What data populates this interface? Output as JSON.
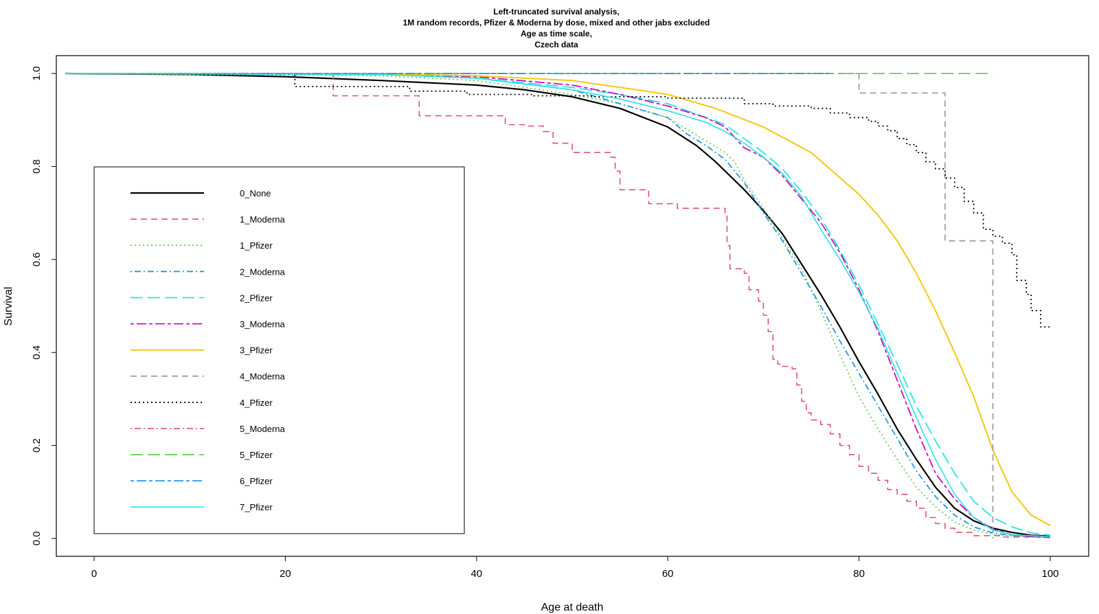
{
  "chart_data": {
    "type": "line",
    "title_lines": [
      "Left-truncated survival analysis,",
      "1M random records, Pfizer & Moderna by dose, mixed and other jabs excluded",
      "Age as time scale,",
      "Czech data"
    ],
    "xlabel": "Age at death",
    "ylabel": "Survival",
    "xlim": [
      -4,
      104
    ],
    "ylim": [
      -0.04,
      1.04
    ],
    "xticks": [
      0,
      20,
      40,
      60,
      80,
      100
    ],
    "yticks": [
      0.0,
      0.2,
      0.4,
      0.6,
      0.8,
      1.0
    ],
    "xtick_labels": [
      "0",
      "20",
      "40",
      "60",
      "80",
      "100"
    ],
    "ytick_labels": [
      "0.0",
      "0.2",
      "0.4",
      "0.6",
      "0.8",
      "1.0"
    ],
    "legend_position": "left",
    "series": [
      {
        "name": "0_None",
        "color": "#000000",
        "dash": "solid",
        "width": 2.2,
        "step": false,
        "points": [
          [
            -3,
            1.0
          ],
          [
            10,
            0.998
          ],
          [
            20,
            0.993
          ],
          [
            30,
            0.985
          ],
          [
            40,
            0.975
          ],
          [
            45,
            0.965
          ],
          [
            50,
            0.95
          ],
          [
            55,
            0.925
          ],
          [
            60,
            0.885
          ],
          [
            63,
            0.845
          ],
          [
            65,
            0.81
          ],
          [
            68,
            0.75
          ],
          [
            70,
            0.705
          ],
          [
            72,
            0.655
          ],
          [
            74,
            0.59
          ],
          [
            76,
            0.525
          ],
          [
            78,
            0.455
          ],
          [
            80,
            0.38
          ],
          [
            82,
            0.31
          ],
          [
            84,
            0.235
          ],
          [
            86,
            0.17
          ],
          [
            88,
            0.11
          ],
          [
            90,
            0.065
          ],
          [
            92,
            0.038
          ],
          [
            94,
            0.022
          ],
          [
            96,
            0.013
          ],
          [
            98,
            0.007
          ],
          [
            100,
            0.005
          ]
        ]
      },
      {
        "name": "1_Moderna",
        "color": "#df536b",
        "dash": "dashed",
        "width": 1.6,
        "step": true,
        "points": [
          [
            -3,
            1.0
          ],
          [
            25,
            0.952
          ],
          [
            34,
            0.909
          ],
          [
            43,
            0.89
          ],
          [
            45,
            0.887
          ],
          [
            47,
            0.875
          ],
          [
            48,
            0.85
          ],
          [
            50,
            0.83
          ],
          [
            54,
            0.82
          ],
          [
            54.5,
            0.79
          ],
          [
            55,
            0.75
          ],
          [
            58,
            0.72
          ],
          [
            61,
            0.71
          ],
          [
            66,
            0.7
          ],
          [
            66.2,
            0.63
          ],
          [
            66.5,
            0.58
          ],
          [
            68,
            0.57
          ],
          [
            68.5,
            0.535
          ],
          [
            69.5,
            0.51
          ],
          [
            70,
            0.48
          ],
          [
            70.5,
            0.445
          ],
          [
            71,
            0.385
          ],
          [
            71.5,
            0.375
          ],
          [
            72,
            0.37
          ],
          [
            73,
            0.365
          ],
          [
            73.5,
            0.33
          ],
          [
            74,
            0.295
          ],
          [
            74.5,
            0.27
          ],
          [
            75,
            0.255
          ],
          [
            76,
            0.245
          ],
          [
            77,
            0.225
          ],
          [
            78,
            0.2
          ],
          [
            79,
            0.18
          ],
          [
            80,
            0.155
          ],
          [
            81,
            0.14
          ],
          [
            82,
            0.125
          ],
          [
            83,
            0.105
          ],
          [
            84,
            0.095
          ],
          [
            85,
            0.08
          ],
          [
            86,
            0.065
          ],
          [
            87,
            0.045
          ],
          [
            88,
            0.032
          ],
          [
            89,
            0.022
          ],
          [
            90,
            0.013
          ],
          [
            92,
            0.006
          ],
          [
            95,
            0.003
          ],
          [
            100,
            0.003
          ]
        ]
      },
      {
        "name": "1_Pfizer",
        "color": "#61d04f",
        "dash": "dotted",
        "width": 1.8,
        "step": false,
        "points": [
          [
            -3,
            1.0
          ],
          [
            30,
            0.995
          ],
          [
            40,
            0.985
          ],
          [
            50,
            0.955
          ],
          [
            55,
            0.935
          ],
          [
            60,
            0.905
          ],
          [
            62,
            0.88
          ],
          [
            64,
            0.855
          ],
          [
            66,
            0.83
          ],
          [
            67,
            0.81
          ],
          [
            68,
            0.77
          ],
          [
            70,
            0.71
          ],
          [
            72,
            0.645
          ],
          [
            74,
            0.58
          ],
          [
            76,
            0.49
          ],
          [
            78,
            0.395
          ],
          [
            80,
            0.305
          ],
          [
            82,
            0.235
          ],
          [
            84,
            0.17
          ],
          [
            86,
            0.11
          ],
          [
            88,
            0.068
          ],
          [
            90,
            0.035
          ],
          [
            92,
            0.018
          ],
          [
            94,
            0.009
          ],
          [
            96,
            0.005
          ],
          [
            100,
            0.003
          ]
        ]
      },
      {
        "name": "2_Moderna",
        "color": "#2297e6",
        "dash": "dashdot",
        "width": 1.8,
        "step": false,
        "points": [
          [
            -3,
            1.0
          ],
          [
            30,
            0.998
          ],
          [
            40,
            0.99
          ],
          [
            50,
            0.965
          ],
          [
            55,
            0.935
          ],
          [
            60,
            0.905
          ],
          [
            62,
            0.87
          ],
          [
            64,
            0.845
          ],
          [
            66,
            0.815
          ],
          [
            68,
            0.765
          ],
          [
            70,
            0.7
          ],
          [
            72,
            0.64
          ],
          [
            74,
            0.57
          ],
          [
            76,
            0.5
          ],
          [
            78,
            0.425
          ],
          [
            80,
            0.355
          ],
          [
            82,
            0.285
          ],
          [
            84,
            0.215
          ],
          [
            86,
            0.145
          ],
          [
            88,
            0.09
          ],
          [
            90,
            0.05
          ],
          [
            92,
            0.025
          ],
          [
            94,
            0.012
          ],
          [
            96,
            0.006
          ],
          [
            100,
            0.003
          ]
        ]
      },
      {
        "name": "2_Pfizer",
        "color": "#28e2e5",
        "dash": "longdash",
        "width": 1.8,
        "step": false,
        "points": [
          [
            -3,
            1.0
          ],
          [
            30,
            0.998
          ],
          [
            40,
            0.99
          ],
          [
            50,
            0.97
          ],
          [
            55,
            0.955
          ],
          [
            60,
            0.935
          ],
          [
            64,
            0.905
          ],
          [
            66,
            0.89
          ],
          [
            68,
            0.86
          ],
          [
            70,
            0.83
          ],
          [
            72,
            0.795
          ],
          [
            74,
            0.745
          ],
          [
            76,
            0.69
          ],
          [
            78,
            0.62
          ],
          [
            80,
            0.545
          ],
          [
            82,
            0.46
          ],
          [
            84,
            0.375
          ],
          [
            86,
            0.285
          ],
          [
            88,
            0.21
          ],
          [
            90,
            0.14
          ],
          [
            92,
            0.08
          ],
          [
            94,
            0.045
          ],
          [
            96,
            0.025
          ],
          [
            98,
            0.012
          ],
          [
            100,
            0.007
          ]
        ]
      },
      {
        "name": "3_Moderna",
        "color": "#cd0bbc",
        "dash": "twodash",
        "width": 1.8,
        "step": false,
        "points": [
          [
            -3,
            1.0
          ],
          [
            30,
            0.998
          ],
          [
            40,
            0.993
          ],
          [
            50,
            0.975
          ],
          [
            55,
            0.955
          ],
          [
            60,
            0.93
          ],
          [
            64,
            0.905
          ],
          [
            66,
            0.885
          ],
          [
            68,
            0.84
          ],
          [
            70,
            0.82
          ],
          [
            72,
            0.78
          ],
          [
            74,
            0.73
          ],
          [
            76,
            0.68
          ],
          [
            78,
            0.615
          ],
          [
            80,
            0.535
          ],
          [
            82,
            0.445
          ],
          [
            84,
            0.34
          ],
          [
            86,
            0.235
          ],
          [
            88,
            0.14
          ],
          [
            90,
            0.085
          ],
          [
            92,
            0.045
          ],
          [
            94,
            0.02
          ],
          [
            96,
            0.008
          ],
          [
            98,
            0.004
          ],
          [
            100,
            0.002
          ]
        ]
      },
      {
        "name": "3_Pfizer",
        "color": "#f5c710",
        "dash": "solid",
        "width": 2.0,
        "step": false,
        "points": [
          [
            -3,
            1.0
          ],
          [
            30,
            0.999
          ],
          [
            40,
            0.995
          ],
          [
            50,
            0.985
          ],
          [
            55,
            0.97
          ],
          [
            60,
            0.955
          ],
          [
            65,
            0.925
          ],
          [
            70,
            0.885
          ],
          [
            75,
            0.83
          ],
          [
            80,
            0.74
          ],
          [
            82,
            0.695
          ],
          [
            84,
            0.64
          ],
          [
            86,
            0.57
          ],
          [
            88,
            0.49
          ],
          [
            90,
            0.4
          ],
          [
            92,
            0.305
          ],
          [
            94,
            0.19
          ],
          [
            96,
            0.1
          ],
          [
            98,
            0.05
          ],
          [
            100,
            0.028
          ]
        ]
      },
      {
        "name": "4_Moderna",
        "color": "#9e9e9e",
        "dash": "dashed",
        "width": 1.8,
        "step": true,
        "points": [
          [
            -3,
            1.0
          ],
          [
            80,
            0.958
          ],
          [
            89,
            0.64
          ],
          [
            94,
            0.0
          ]
        ]
      },
      {
        "name": "4_Pfizer",
        "color": "#000000",
        "dash": "dotted",
        "width": 1.8,
        "step": true,
        "points": [
          [
            -3,
            1.0
          ],
          [
            21,
            0.972
          ],
          [
            33,
            0.962
          ],
          [
            39,
            0.955
          ],
          [
            46,
            0.952
          ],
          [
            52,
            0.95
          ],
          [
            60,
            0.947
          ],
          [
            68,
            0.935
          ],
          [
            71,
            0.93
          ],
          [
            75,
            0.925
          ],
          [
            77,
            0.915
          ],
          [
            79,
            0.905
          ],
          [
            81,
            0.897
          ],
          [
            82,
            0.887
          ],
          [
            83,
            0.877
          ],
          [
            84,
            0.86
          ],
          [
            85,
            0.847
          ],
          [
            86,
            0.83
          ],
          [
            87,
            0.81
          ],
          [
            88,
            0.795
          ],
          [
            89,
            0.775
          ],
          [
            90,
            0.755
          ],
          [
            91,
            0.725
          ],
          [
            92,
            0.7
          ],
          [
            93,
            0.665
          ],
          [
            94,
            0.65
          ],
          [
            95,
            0.635
          ],
          [
            96,
            0.61
          ],
          [
            96.5,
            0.555
          ],
          [
            97.5,
            0.525
          ],
          [
            98,
            0.49
          ],
          [
            99,
            0.455
          ],
          [
            100,
            0.455
          ]
        ]
      },
      {
        "name": "5_Moderna",
        "color": "#df536b",
        "dash": "dashdot",
        "width": 1.6,
        "step": false,
        "points": []
      },
      {
        "name": "5_Pfizer",
        "color": "#61d04f",
        "dash": "longdash",
        "width": 1.8,
        "step": true,
        "points": [
          [
            -3,
            1.0
          ],
          [
            94,
            1.0
          ]
        ]
      },
      {
        "name": "6_Pfizer",
        "color": "#2297e6",
        "dash": "twodash",
        "width": 1.8,
        "step": true,
        "points": [
          [
            -3,
            1.0
          ],
          [
            77,
            1.0
          ]
        ]
      },
      {
        "name": "7_Pfizer",
        "color": "#28e2e5",
        "dash": "solid",
        "width": 1.6,
        "step": false,
        "points": [
          [
            -3,
            1.0
          ],
          [
            30,
            0.998
          ],
          [
            40,
            0.99
          ],
          [
            50,
            0.965
          ],
          [
            55,
            0.945
          ],
          [
            60,
            0.92
          ],
          [
            64,
            0.895
          ],
          [
            66,
            0.875
          ],
          [
            68,
            0.85
          ],
          [
            70,
            0.82
          ],
          [
            72,
            0.785
          ],
          [
            74,
            0.735
          ],
          [
            76,
            0.665
          ],
          [
            78,
            0.6
          ],
          [
            80,
            0.53
          ],
          [
            82,
            0.45
          ],
          [
            84,
            0.355
          ],
          [
            86,
            0.26
          ],
          [
            88,
            0.17
          ],
          [
            90,
            0.095
          ],
          [
            92,
            0.045
          ],
          [
            94,
            0.018
          ],
          [
            96,
            0.008
          ],
          [
            100,
            0.004
          ]
        ]
      }
    ]
  }
}
